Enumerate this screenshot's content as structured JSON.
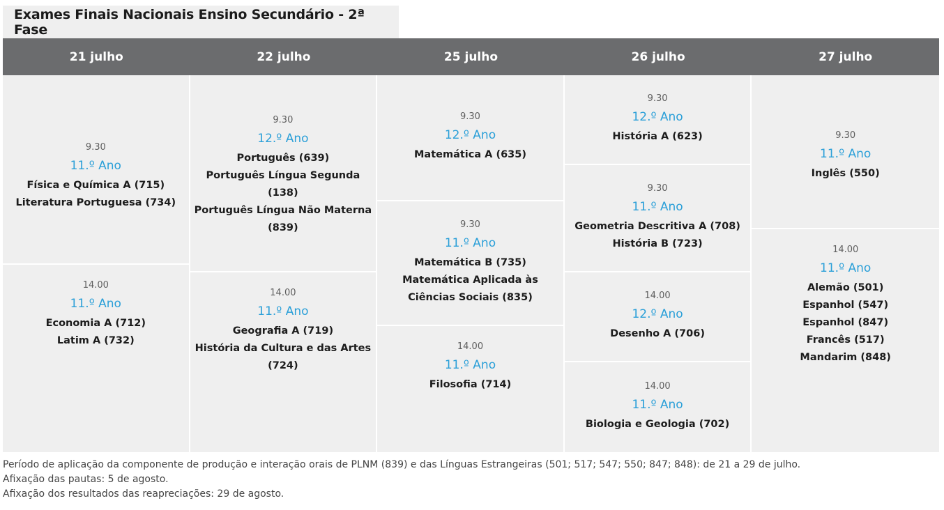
{
  "title": "Exames Finais Nacionais Ensino Secundário - 2ª Fase",
  "days": [
    {
      "date": "21 julho",
      "slots": [
        {
          "time": "9.30",
          "year": "11.º Ano",
          "subjects": [
            "Física e Química A (715)",
            "Literatura Portuguesa (734)"
          ]
        },
        {
          "time": "14.00",
          "year": "11.º Ano",
          "subjects": [
            "Economia A (712)",
            "Latim A (732)"
          ]
        }
      ]
    },
    {
      "date": "22 julho",
      "slots": [
        {
          "time": "9.30",
          "year": "12.º Ano",
          "subjects": [
            "Português (639)",
            "Português Língua Segunda (138)",
            "Português Língua Não Materna",
            "(839)"
          ]
        },
        {
          "time": "14.00",
          "year": "11.º Ano",
          "subjects": [
            "Geografia A (719)",
            "História da Cultura e das Artes",
            "(724)"
          ]
        }
      ]
    },
    {
      "date": "25 julho",
      "slots": [
        {
          "time": "9.30",
          "year": "12.º Ano",
          "subjects": [
            "Matemática A (635)"
          ]
        },
        {
          "time": "9.30",
          "year": "11.º Ano",
          "subjects": [
            "Matemática B (735)",
            "Matemática Aplicada às",
            "Ciências Sociais (835)"
          ]
        },
        {
          "time": "14.00",
          "year": "11.º Ano",
          "subjects": [
            "Filosofia (714)"
          ]
        }
      ]
    },
    {
      "date": "26 julho",
      "slots": [
        {
          "time": "9.30",
          "year": "12.º Ano",
          "subjects": [
            "História A (623)"
          ]
        },
        {
          "time": "9.30",
          "year": "11.º Ano",
          "subjects": [
            "Geometria Descritiva A (708)",
            "História B (723)"
          ]
        },
        {
          "time": "14.00",
          "year": "12.º Ano",
          "subjects": [
            "Desenho A (706)"
          ]
        },
        {
          "time": "14.00",
          "year": "11.º Ano",
          "subjects": [
            "Biologia e Geologia (702)"
          ]
        }
      ]
    },
    {
      "date": "27 julho",
      "slots": [
        {
          "time": "9.30",
          "year": "11.º Ano",
          "subjects": [
            "Inglês (550)"
          ]
        },
        {
          "time": "14.00",
          "year": "11.º Ano",
          "subjects": [
            "Alemão (501)",
            "Espanhol (547)",
            "Espanhol (847)",
            "Francês (517)",
            "Mandarim (848)"
          ]
        }
      ]
    }
  ],
  "footnotes": [
    "Período de aplicação da componente de produção e interação orais de PLNM (839) e das Línguas Estrangeiras (501; 517; 547; 550; 847; 848): de 21 a 29 de julho.",
    "Afixação das pautas: 5 de agosto.",
    "Afixação dos resultados das reapreciações: 29 de agosto."
  ]
}
